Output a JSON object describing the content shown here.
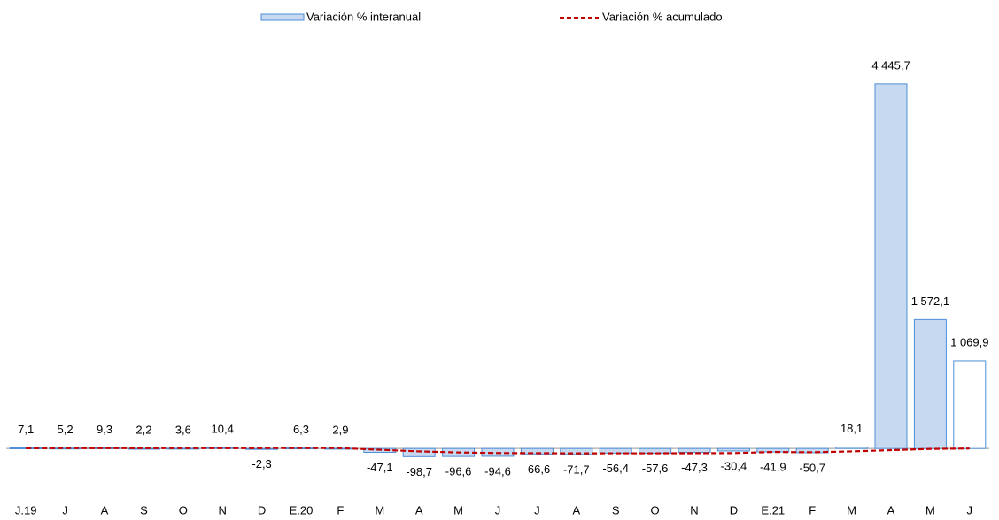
{
  "chart_data": {
    "type": "bar",
    "categories": [
      "J.19",
      "J",
      "A",
      "S",
      "O",
      "N",
      "D",
      "E.20",
      "F",
      "M",
      "A",
      "M",
      "J",
      "J",
      "A",
      "S",
      "O",
      "N",
      "D",
      "E.21",
      "F",
      "M",
      "A",
      "M",
      "J"
    ],
    "series": [
      {
        "name": "Variación % interanual",
        "type": "bar",
        "color": "#c6d9f1",
        "edge_color": "#4f8fd6",
        "bar_colors": [
          "#c6d9f1",
          "#c6d9f1",
          "#c6d9f1",
          "#c6d9f1",
          "#c6d9f1",
          "#c6d9f1",
          "#c6d9f1",
          "#c6d9f1",
          "#c6d9f1",
          "#c6d9f1",
          "#c6d9f1",
          "#c6d9f1",
          "#c6d9f1",
          "#c6d9f1",
          "#c6d9f1",
          "#c6d9f1",
          "#c6d9f1",
          "#c6d9f1",
          "#c6d9f1",
          "#c6d9f1",
          "#c6d9f1",
          "#c6d9f1",
          "#c6d9f1",
          "#c6d9f1",
          "#ffffff"
        ],
        "values": [
          7.1,
          5.2,
          9.3,
          2.2,
          3.6,
          10.4,
          -2.3,
          6.3,
          2.9,
          -47.1,
          -98.7,
          -96.6,
          -94.6,
          -66.6,
          -71.7,
          -56.4,
          -57.6,
          -47.3,
          -30.4,
          -41.9,
          -50.7,
          18.1,
          4445.7,
          1572.1,
          1069.9
        ],
        "value_labels": [
          "7,1",
          "5,2",
          "9,3",
          "2,2",
          "3,6",
          "10,4",
          "-2,3",
          "6,3",
          "2,9",
          "-47,1",
          "-98,7",
          "-96,6",
          "-94,6",
          "-66,6",
          "-71,7",
          "-56,4",
          "-57,6",
          "-47,3",
          "-30,4",
          "-41,9",
          "-50,7",
          "18,1",
          "4 445,7",
          "1 572,1",
          "1 069,9"
        ]
      },
      {
        "name": "Variación % acumulado",
        "type": "line",
        "color": "#c00000",
        "values": [
          3,
          4,
          5,
          5,
          5,
          5,
          5,
          6,
          5,
          -15,
          -35,
          -48,
          -55,
          -57,
          -59,
          -58,
          -58,
          -57,
          -56,
          -42,
          -46,
          -35,
          -20,
          -5,
          0
        ]
      }
    ],
    "ylim": [
      -300,
      4800
    ]
  }
}
